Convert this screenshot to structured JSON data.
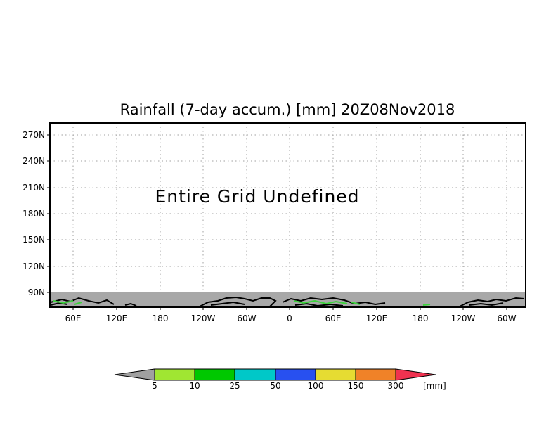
{
  "title": "Rainfall (7-day accum.) [mm] 20Z08Nov2018",
  "overlay_message": "Entire Grid Undefined",
  "axes": {
    "y_ticks": [
      "270N",
      "240N",
      "210N",
      "180N",
      "150N",
      "120N",
      "90N"
    ],
    "x_ticks": [
      "60E",
      "120E",
      "180",
      "120W",
      "60W",
      "0",
      "60E",
      "120E",
      "180",
      "120W",
      "60W"
    ]
  },
  "colorbar": {
    "unit": "[mm]",
    "labels": [
      "5",
      "10",
      "25",
      "50",
      "100",
      "150",
      "300"
    ],
    "colors": {
      "below": "#a0a0a0",
      "bins": [
        "#a0e632",
        "#00c800",
        "#00c8c8",
        "#2850f0",
        "#e6dc32",
        "#f08228"
      ],
      "above": "#f03250"
    }
  },
  "colors": {
    "undefined_band": "#a8a8a8",
    "coastline": "#000000",
    "grid": "#a0a0a0"
  }
}
